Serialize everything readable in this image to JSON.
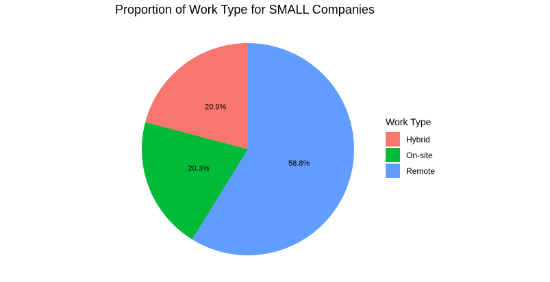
{
  "chart_data": {
    "type": "pie",
    "title": "Proportion of Work Type for SMALL Companies",
    "legend_title": "Work Type",
    "legend_position": "right",
    "slices": [
      {
        "label": "Hybrid",
        "value": 20.9,
        "value_label": "20.9%",
        "color": "#F8766D"
      },
      {
        "label": "On-site",
        "value": 20.3,
        "value_label": "20.3%",
        "color": "#00BA38"
      },
      {
        "label": "Remote",
        "value": 58.8,
        "value_label": "58.8%",
        "color": "#619CFF"
      }
    ]
  }
}
